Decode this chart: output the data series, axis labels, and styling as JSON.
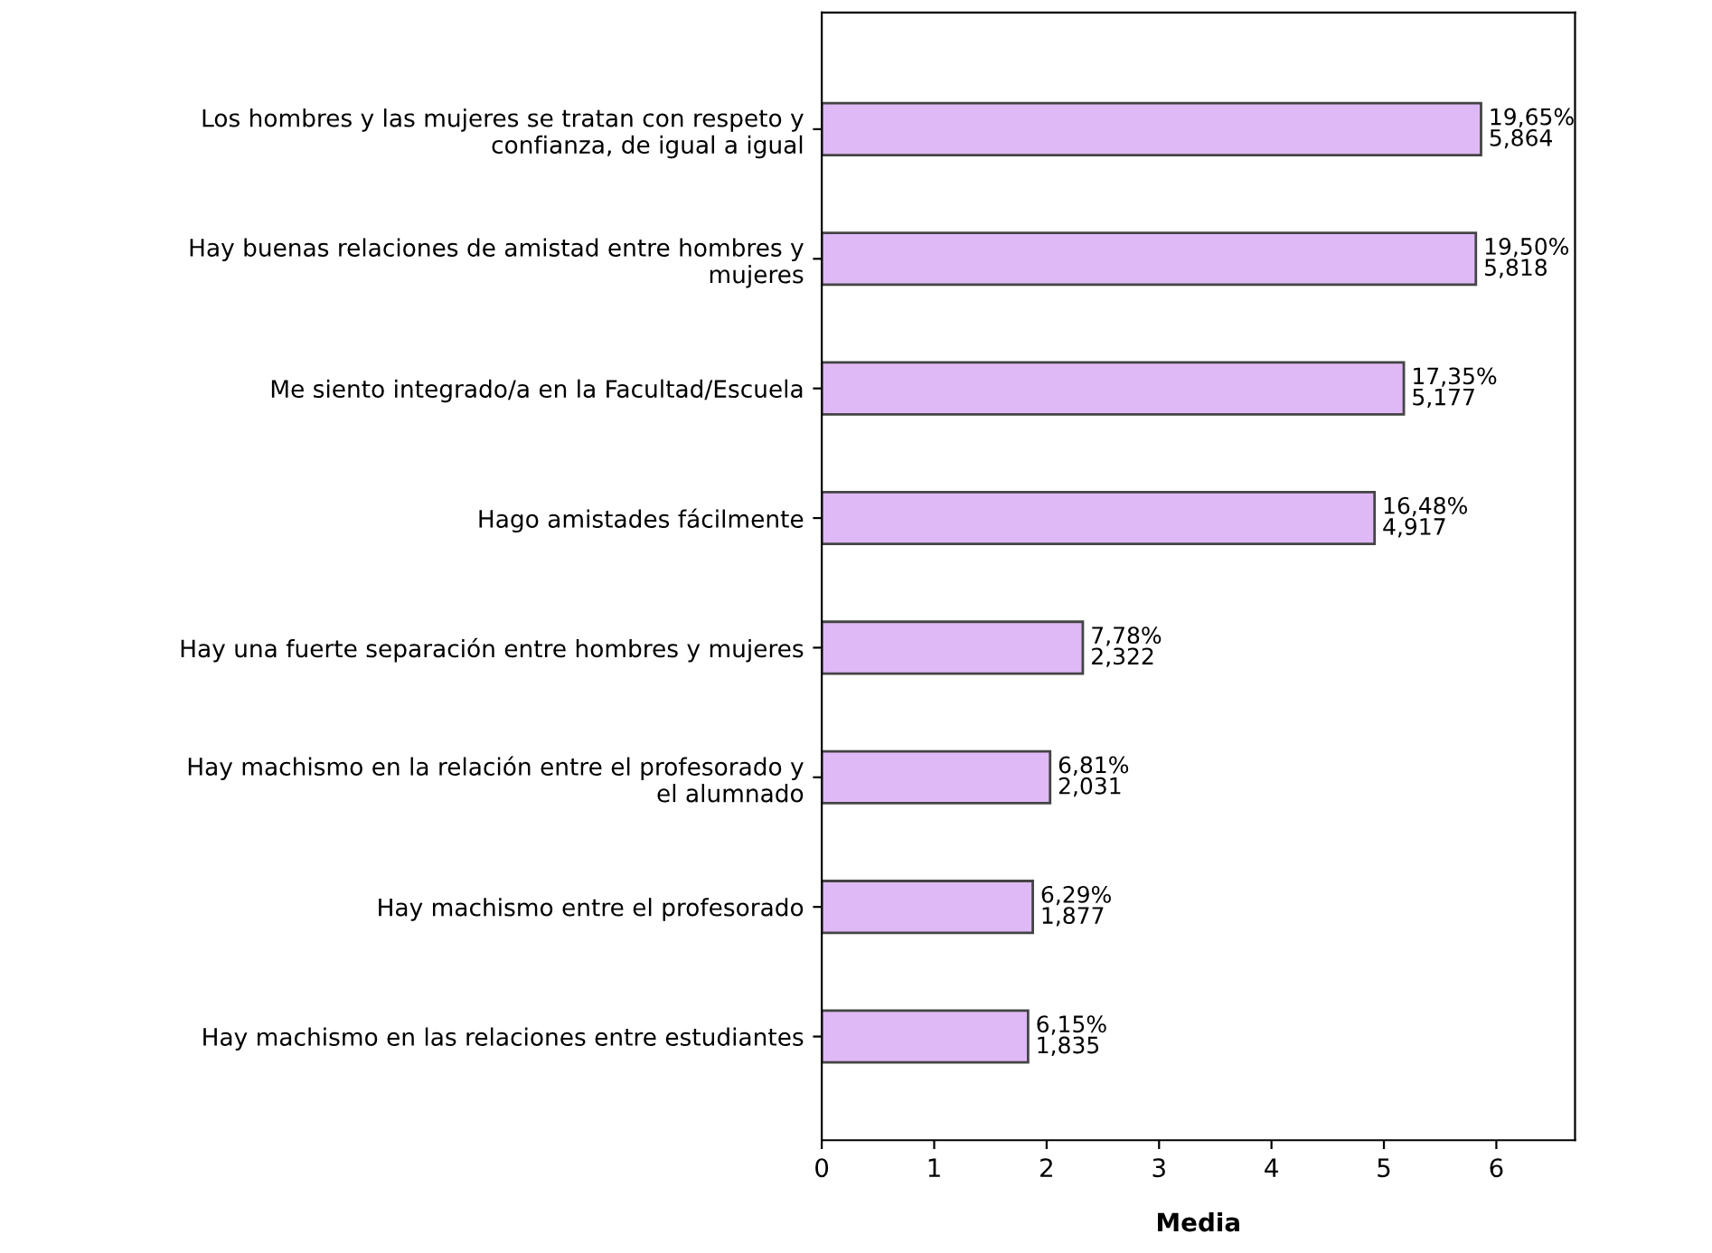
{
  "chart_data": {
    "type": "bar",
    "orientation": "horizontal",
    "xlabel": "Media",
    "categories": [
      "Los hombres y las mujeres se tratan con respeto y\nconfianza, de igual a igual",
      "Hay buenas relaciones de amistad entre hombres y\nmujeres",
      "Me siento integrado/a en la Facultad/Escuela",
      "Hago amistades fácilmente",
      "Hay una fuerte separación entre hombres y mujeres",
      "Hay machismo en la relación entre el profesorado y\nel alumnado",
      "Hay machismo entre el profesorado",
      "Hay machismo en las relaciones entre estudiantes"
    ],
    "values": [
      5.864,
      5.818,
      5.177,
      4.917,
      2.322,
      2.031,
      1.877,
      1.835
    ],
    "annotations": [
      {
        "text": "19,65%\n5,864",
        "x": 5.864,
        "y": "Los hombres y las mujeres se tratan con respeto y\nconfianza, de igual a igual"
      },
      {
        "text": "19,50%\n5,818",
        "x": 5.818,
        "y": "Hay buenas relaciones de amistad entre hombres y\nmujeres"
      },
      {
        "text": "17,35%\n5,177",
        "x": 5.177,
        "y": "Me siento integrado/a en la Facultad/Escuela"
      },
      {
        "text": "16,48%\n4,917",
        "x": 4.917,
        "y": "Hago amistades fácilmente"
      },
      {
        "text": "7,78%\n2,322",
        "x": 2.322,
        "y": "Hay una fuerte separación entre hombres y mujeres"
      },
      {
        "text": "6,81%\n2,031",
        "x": 2.031,
        "y": "Hay machismo en la relación entre el profesorado y\nel alumnado"
      },
      {
        "text": "6,29%\n1,877",
        "x": 1.877,
        "y": "Hay machismo entre el profesorado"
      },
      {
        "text": "6,15%\n1,835",
        "x": 1.835,
        "y": "Hay machismo en las relaciones entre estudiantes"
      }
    ],
    "color": "#dfb9f5",
    "xlim": [
      0,
      6.7
    ],
    "xticks": [
      0,
      1,
      2,
      3,
      4,
      5,
      6
    ],
    "grid": false,
    "legend": false
  }
}
